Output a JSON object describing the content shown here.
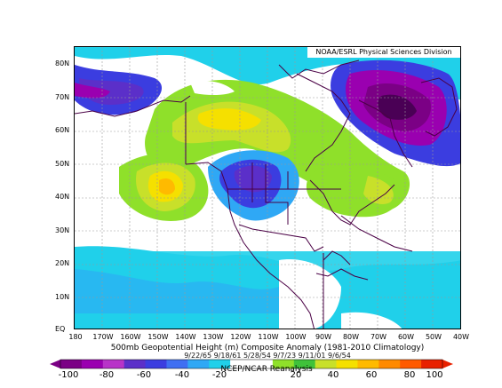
{
  "source_label": "NOAA/ESRL Physical Sciences Division",
  "title": "500mb Geopotential Height (m) Composite Anomaly (1981-2010 Climatology)",
  "dates": "9/22/65 9/18/61 5/28/54 9/7/23 9/11/01 9/6/54",
  "dataset": "NCEP/NCAR Reanalysis",
  "lat_labels": [
    "80N",
    "70N",
    "60N",
    "50N",
    "40N",
    "30N",
    "20N",
    "10N",
    "EQ"
  ],
  "lon_labels": [
    "180",
    "170W",
    "160W",
    "150W",
    "140W",
    "130W",
    "120W",
    "110W",
    "100W",
    "90W",
    "80W",
    "70W",
    "60W",
    "50W",
    "40W"
  ],
  "colorbar": {
    "labels": [
      "-100",
      "-80",
      "-60",
      "-40",
      "-20",
      "20",
      "40",
      "60",
      "80",
      "100"
    ],
    "colors": [
      "#7b0085",
      "#9a00b0",
      "#b833c8",
      "#5b2fc9",
      "#3b3de0",
      "#3f6ff2",
      "#2fa8f5",
      "#20d0ea",
      "#ffffff",
      "#ffffff",
      "#8fe02a",
      "#3fc23a",
      "#c8e02a",
      "#f5e000",
      "#ffba00",
      "#ff8a00",
      "#ff5a00",
      "#e82000"
    ]
  }
}
